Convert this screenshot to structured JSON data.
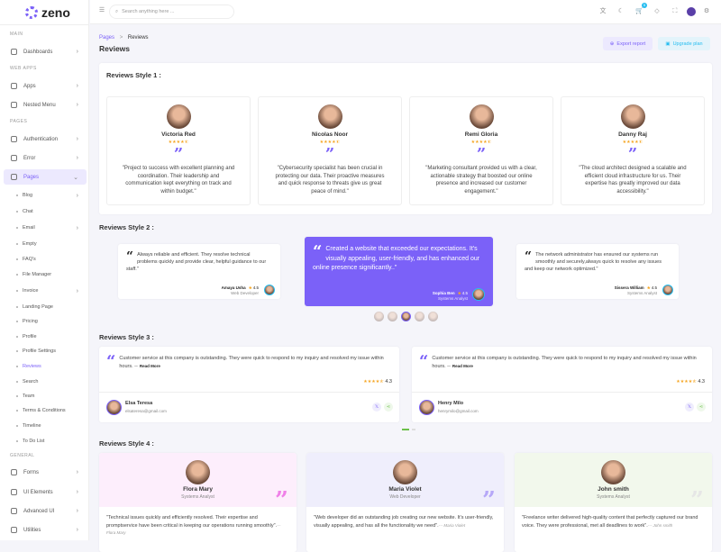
{
  "app": {
    "logo": "zeno"
  },
  "sidebar": {
    "items": [
      {
        "type": "section",
        "label": "MAIN"
      },
      {
        "label": "Dashboards",
        "chevron": true
      },
      {
        "type": "section",
        "label": "WEB APPS"
      },
      {
        "label": "Apps",
        "chevron": true
      },
      {
        "label": "Nested Menu",
        "chevron": true
      },
      {
        "type": "section",
        "label": "PAGES"
      },
      {
        "label": "Authentication",
        "chevron": true
      },
      {
        "label": "Error",
        "chevron": true
      },
      {
        "label": "Pages",
        "chevron": true,
        "active": true,
        "expanded": true
      },
      {
        "label": "Blog",
        "sub": true,
        "chevron": true
      },
      {
        "label": "Chat",
        "sub": true
      },
      {
        "label": "Email",
        "sub": true,
        "chevron": true
      },
      {
        "label": "Empty",
        "sub": true
      },
      {
        "label": "FAQ's",
        "sub": true
      },
      {
        "label": "File Manager",
        "sub": true
      },
      {
        "label": "Invoice",
        "sub": true,
        "chevron": true
      },
      {
        "label": "Landing Page",
        "sub": true
      },
      {
        "label": "Pricing",
        "sub": true
      },
      {
        "label": "Profile",
        "sub": true
      },
      {
        "label": "Profile Settings",
        "sub": true
      },
      {
        "label": "Reviews",
        "sub": true,
        "active": true
      },
      {
        "label": "Search",
        "sub": true
      },
      {
        "label": "Team",
        "sub": true
      },
      {
        "label": "Terms & Conditions",
        "sub": true
      },
      {
        "label": "Timeline",
        "sub": true
      },
      {
        "label": "To Do List",
        "sub": true
      },
      {
        "type": "section",
        "label": "GENERAL"
      },
      {
        "label": "Forms",
        "chevron": true
      },
      {
        "label": "UI Elements",
        "chevron": true
      },
      {
        "label": "Advanced UI",
        "chevron": true
      },
      {
        "label": "Utilities",
        "chevron": true
      }
    ]
  },
  "header": {
    "search_placeholder": "Search anything here ...",
    "cart_count": "5",
    "icons": [
      "translate-icon",
      "moon-icon",
      "cart-icon",
      "bell-icon",
      "fullscreen-icon",
      "avatar",
      "gear-icon"
    ]
  },
  "page": {
    "breadcrumb": [
      "Pages",
      "Reviews"
    ],
    "title": "Reviews",
    "export_label": "Export report",
    "upgrade_label": "Upgrade plan"
  },
  "colors": {
    "accent": "#7b61f8",
    "star": "#f5a623",
    "upgrade": "#e3f4fb"
  },
  "style1": {
    "title": "Reviews Style 1 :",
    "cards": [
      {
        "name": "Victoria Red",
        "rating": 4.5,
        "text": "\"Project to success with excellent planning and coordination. Their leadership and communication kept everything on track and within budget.\""
      },
      {
        "name": "Nicolas Noor",
        "rating": 4.5,
        "text": "\"Cybersecurity specialist has been crucial in protecting our data. Their proactive measures and quick response to threats give us great peace of mind.\""
      },
      {
        "name": "Remi Gloria",
        "rating": 4.5,
        "text": "\"Marketing consultant provided us with a clear, actionable strategy that boosted our online presence and increased our customer engagement.\""
      },
      {
        "name": "Danny Raj",
        "rating": 4.5,
        "text": "\"The cloud architect designed a scalable and efficient cloud infrastructure for us. Their expertise has greatly improved our data accessibility.\""
      }
    ]
  },
  "style2": {
    "title": "Reviews Style 2 :",
    "cards": [
      {
        "text": "Always reliable and efficient. They resolve technical problems quickly and provide clear, helpful guidance to our staff.\"",
        "name": "Amaya Usha",
        "rating": "4.5",
        "role": "Web Developer"
      },
      {
        "text": "Created a website that exceeded our expectations. It's visually appealing, user-friendly, and has enhanced our online presence significantly..\"",
        "name": "Sophia Ben",
        "rating": "4.5",
        "role": "Systems Analyst"
      },
      {
        "text": "The network administrator has ensured our systems run smoothly and securely,always quick to resolve any issues and keep our network optimized.\"",
        "name": "Sissera William",
        "rating": "4.5",
        "role": "Systems Analyst"
      }
    ],
    "active_index": 2,
    "thumb_count": 5
  },
  "style3": {
    "title": "Reviews Style 3 :",
    "read_more": "Read More",
    "cards": [
      {
        "text": "Customer service at this company is outstanding. They were quick to respond to my inquiry and resolved my issue within hours. --",
        "rating": "4.3",
        "name": "Elsa Teresa",
        "email": "elsateresa@gmail.com"
      },
      {
        "text": "Customer service at this company is outstanding. They were quick to respond to my inquiry and resolved my issue within hours. --",
        "rating": "4.3",
        "name": "Henry Milo",
        "email": "henrymilo@gmail.com"
      }
    ]
  },
  "style4": {
    "title": "Reviews Style 4 :",
    "cards": [
      {
        "name": "Flora Mary",
        "role": "Systems Analyst",
        "text": "\"Technical issues quickly and efficiently resolved. Their expertise and promptservice have been critical in keeping our operations running smoothly\".",
        "author": "--- Flora Mary",
        "bg": "#fdeefc",
        "quote_color": "#f080e8"
      },
      {
        "name": "Maria Violet",
        "role": "Web Developer",
        "text": "\"Web developer did an outstanding job creating our new website. It's user-friendly, visually appealing, and has all the functionality we need\".",
        "author": "--- Maria Violet",
        "bg": "#efeefc",
        "quote_color": "#b6a8f8"
      },
      {
        "name": "John smith",
        "role": "Systems Analyst",
        "text": "\"Freelance writer delivered high-quality content that perfectly captured our brand voice. They were professional, met all deadlines to work\".",
        "author": "--- John smith",
        "bg": "#f2f8ec",
        "quote_color": "#e6e6e6"
      }
    ]
  }
}
